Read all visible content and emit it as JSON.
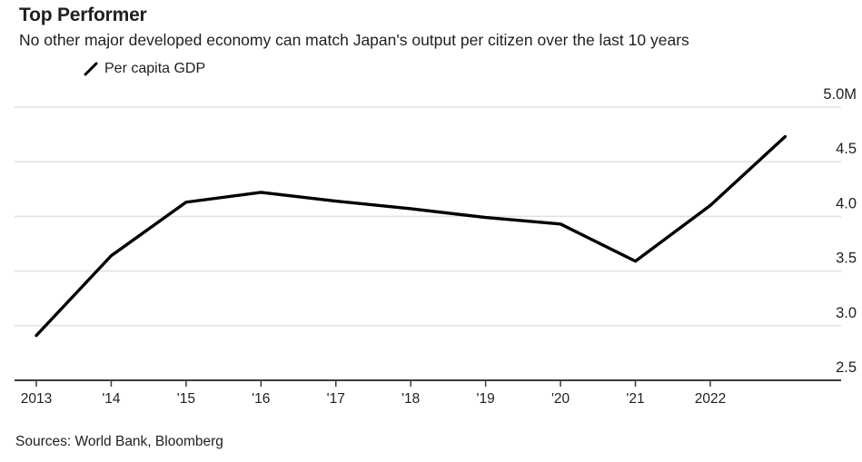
{
  "chart_data": {
    "type": "line",
    "title": "Top Performer",
    "subtitle": "No other major developed economy can match Japan's output per citizen over the last 10 years",
    "legend_entries": [
      "Per capita GDP"
    ],
    "legend_position": "top-left",
    "series": [
      {
        "name": "Per capita GDP",
        "x": [
          2013,
          2014,
          2015,
          2016,
          2017,
          2018,
          2019,
          2020,
          2021,
          2022,
          2023
        ],
        "values": [
          2.91,
          3.64,
          4.13,
          4.22,
          4.14,
          4.07,
          3.99,
          3.93,
          3.59,
          4.1,
          4.73
        ]
      }
    ],
    "xlabel": "",
    "ylabel": "",
    "xlim": [
      2013,
      2023
    ],
    "ylim": [
      2.5,
      5.0
    ],
    "grid": "horizontal",
    "y_ticks": [
      {
        "value": 2.5,
        "label": "2.5"
      },
      {
        "value": 3.0,
        "label": "3.0"
      },
      {
        "value": 3.5,
        "label": "3.5"
      },
      {
        "value": 4.0,
        "label": "4.0"
      },
      {
        "value": 4.5,
        "label": "4.5"
      },
      {
        "value": 5.0,
        "label": "5.0M"
      }
    ],
    "x_ticks": [
      {
        "value": 2013,
        "label": "2013"
      },
      {
        "value": 2014,
        "label": "'14"
      },
      {
        "value": 2015,
        "label": "'15"
      },
      {
        "value": 2016,
        "label": "'16"
      },
      {
        "value": 2017,
        "label": "'17"
      },
      {
        "value": 2018,
        "label": "'18"
      },
      {
        "value": 2019,
        "label": "'19"
      },
      {
        "value": 2020,
        "label": "'20"
      },
      {
        "value": 2021,
        "label": "'21"
      },
      {
        "value": 2022,
        "label": "2022"
      }
    ],
    "sources": "Sources: World Bank, Bloomberg"
  },
  "colors": {
    "background": "#ffffff",
    "line": "#000000",
    "grid": "#e0e0e0",
    "axis": "#3d3d3d",
    "text": "#1f1f1f"
  }
}
